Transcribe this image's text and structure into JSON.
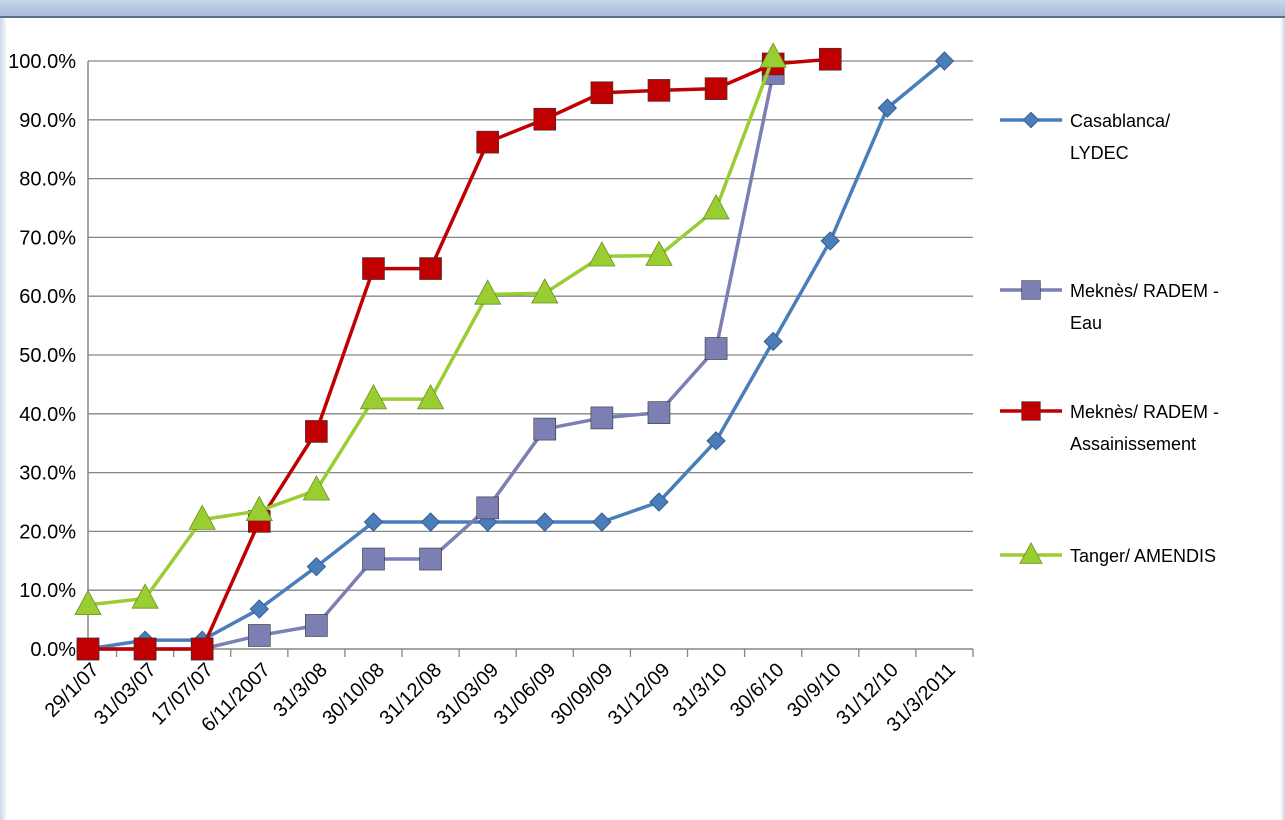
{
  "chart_data": {
    "type": "line",
    "title": "",
    "xlabel": "",
    "ylabel": "",
    "categories": [
      "29/1/07",
      "31/03/07",
      "17/07/07",
      "6/11/2007",
      "31/3/08",
      "30/10/08",
      "31/12/08",
      "31/03/09",
      "31/06/09",
      "30/09/09",
      "31/12/09",
      "31/3/10",
      "30/6/10",
      "30/9/10",
      "31/12/10",
      "31/3/2011"
    ],
    "y_ticks": [
      "0.0%",
      "10.0%",
      "20.0%",
      "30.0%",
      "40.0%",
      "50.0%",
      "60.0%",
      "70.0%",
      "80.0%",
      "90.0%",
      "100.0%"
    ],
    "ylim": [
      0,
      100
    ],
    "grid": "horizontal",
    "legend_position": "right",
    "series": [
      {
        "name": "Casablanca/ LYDEC",
        "legend_lines": [
          "Casablanca/",
          "LYDEC"
        ],
        "color": "#4a7ebb",
        "marker": "diamond",
        "values": [
          0,
          1.5,
          1.5,
          6.8,
          14.0,
          21.6,
          21.6,
          21.6,
          21.6,
          21.6,
          25.0,
          35.4,
          52.3,
          69.4,
          92.0,
          100.0
        ]
      },
      {
        "name": "Meknès/ RADEM - Eau",
        "legend_lines": [
          "Meknès/ RADEM -",
          "Eau"
        ],
        "color": "#7b7fb3",
        "marker": "square",
        "values": [
          0,
          0,
          0,
          2.3,
          4.0,
          15.3,
          15.3,
          24.0,
          37.4,
          39.3,
          40.2,
          51.1,
          97.9,
          null,
          null,
          null
        ]
      },
      {
        "name": "Meknès/ RADEM - Assainissement",
        "legend_lines": [
          "Meknès/ RADEM -",
          "Assainissement"
        ],
        "color": "#c00000",
        "marker": "square",
        "values": [
          0,
          0,
          0,
          21.7,
          37.0,
          64.7,
          64.7,
          86.2,
          90.1,
          94.6,
          95.0,
          95.3,
          99.5,
          100.3,
          null,
          null
        ]
      },
      {
        "name": "Tanger/ AMENDIS",
        "legend_lines": [
          "Tanger/ AMENDIS"
        ],
        "color": "#9acd32",
        "marker": "triangle",
        "values": [
          7.5,
          8.6,
          22.0,
          23.5,
          27.0,
          42.5,
          42.5,
          60.3,
          60.5,
          66.8,
          66.9,
          74.8,
          100.6,
          null,
          null,
          null
        ]
      }
    ]
  }
}
